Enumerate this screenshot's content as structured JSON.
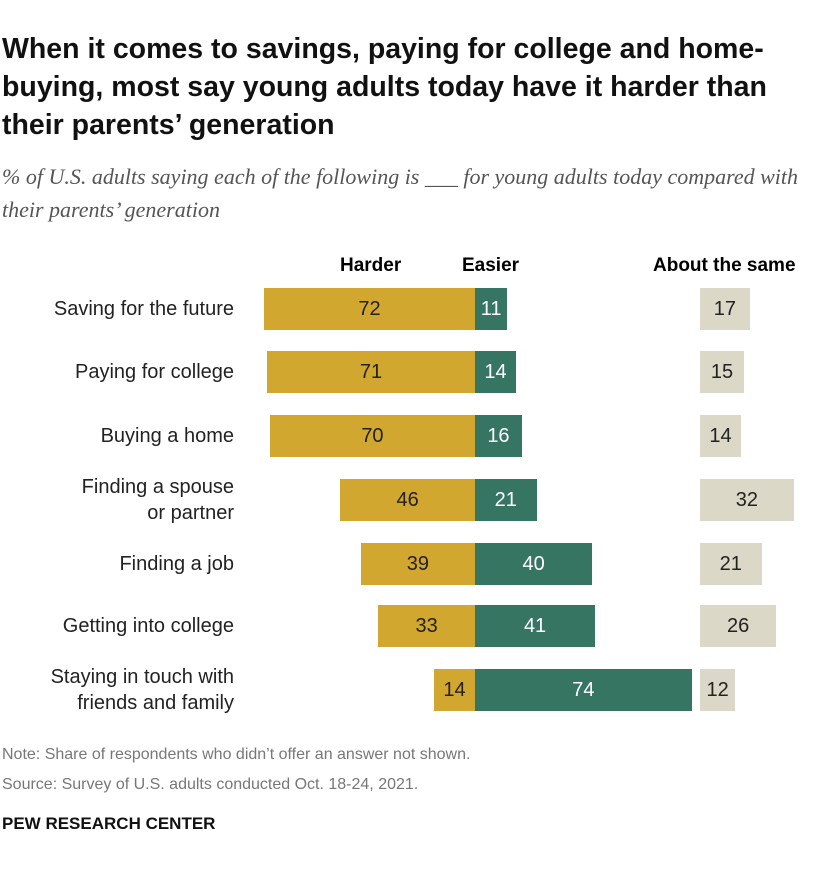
{
  "chart_data": {
    "type": "bar",
    "title": "When it comes to savings, paying for college and home-buying, most say young adults today have it harder than their parents’ generation",
    "subtitle": "% of U.S. adults saying each of the following is ___ for young adults today compared with their parents’ generation",
    "legend": [
      "Harder",
      "Easier",
      "About the same"
    ],
    "categories": [
      "Saving for the future",
      "Paying for college",
      "Buying a home",
      "Finding a spouse or partner",
      "Finding a job",
      "Getting into college",
      "Staying in touch with friends and family"
    ],
    "category_lines": [
      [
        "Saving for the future"
      ],
      [
        "Paying for college"
      ],
      [
        "Buying a home"
      ],
      [
        "Finding a spouse",
        "or partner"
      ],
      [
        "Finding a job"
      ],
      [
        "Getting into college"
      ],
      [
        "Staying in touch with",
        "friends and family"
      ]
    ],
    "series": [
      {
        "name": "Harder",
        "values": [
          72,
          71,
          70,
          46,
          39,
          33,
          14
        ],
        "color": "#D2A72F"
      },
      {
        "name": "Easier",
        "values": [
          11,
          14,
          16,
          21,
          40,
          41,
          74
        ],
        "color": "#377563"
      },
      {
        "name": "About the same",
        "values": [
          17,
          15,
          14,
          32,
          21,
          26,
          12
        ],
        "color": "#DCD8C7"
      }
    ]
  },
  "note": "Note: Share of respondents who didn’t offer an answer not shown.",
  "source": "Source: Survey of U.S. adults conducted Oct. 18-24, 2021.",
  "brand": "PEW RESEARCH CENTER"
}
